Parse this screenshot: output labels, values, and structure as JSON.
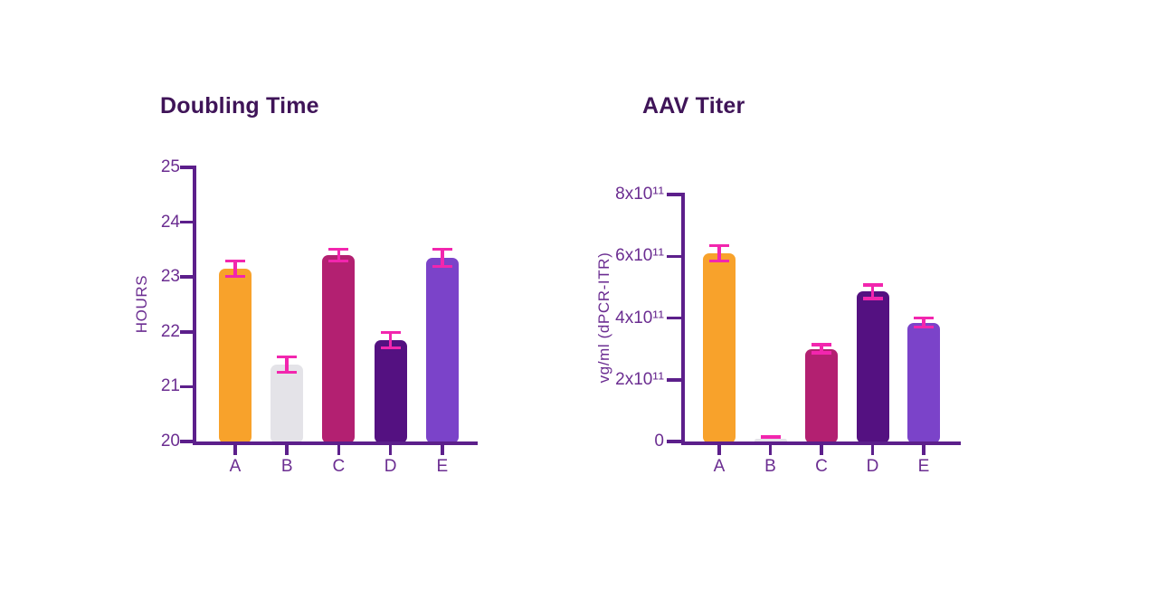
{
  "chart_data": [
    {
      "id": "doubling-time",
      "type": "bar",
      "title": "Doubling Time",
      "ylabel": "HOURS",
      "xlabel": "",
      "categories": [
        "A",
        "B",
        "C",
        "D",
        "E"
      ],
      "values": [
        23.15,
        21.4,
        23.4,
        21.85,
        23.35
      ],
      "errors": [
        0.14,
        0.14,
        0.11,
        0.14,
        0.16
      ],
      "ylim": [
        20,
        25
      ],
      "yticks": [
        20,
        21,
        22,
        23,
        24,
        25
      ],
      "ytick_labels": [
        "20",
        "21",
        "22",
        "23",
        "24",
        "25"
      ],
      "grid": false,
      "legend": null,
      "bar_colors": [
        "#F8A22B",
        "#E4E3E8",
        "#B32071",
        "#541181",
        "#7B43C9"
      ],
      "error_color": "#F226AE",
      "axis_color": "#5C1F8B",
      "tick_text_color": "#6B2D91",
      "title_color": "#3F1458"
    },
    {
      "id": "aav-titer",
      "type": "bar",
      "title": "AAV Titer",
      "ylabel": "vg/ml (dPCR-ITR)",
      "xlabel": "",
      "categories": [
        "A",
        "B",
        "C",
        "D",
        "E"
      ],
      "values": [
        610000000000.0,
        8000000000.0,
        300000000000.0,
        485000000000.0,
        385000000000.0
      ],
      "errors": [
        25000000000.0,
        6000000000.0,
        13000000000.0,
        22000000000.0,
        15000000000.0
      ],
      "ylim": [
        0,
        800000000000.0
      ],
      "yticks": [
        0,
        200000000000.0,
        400000000000.0,
        600000000000.0,
        800000000000.0
      ],
      "ytick_labels": [
        "0",
        "2x10¹¹",
        "4x10¹¹",
        "6x10¹¹",
        "8x10¹¹"
      ],
      "grid": false,
      "legend": null,
      "bar_colors": [
        "#F8A22B",
        "#E4E3E8",
        "#B32071",
        "#541181",
        "#7B43C9"
      ],
      "error_color": "#F226AE",
      "axis_color": "#5C1F8B",
      "tick_text_color": "#6B2D91",
      "title_color": "#3F1458"
    }
  ]
}
